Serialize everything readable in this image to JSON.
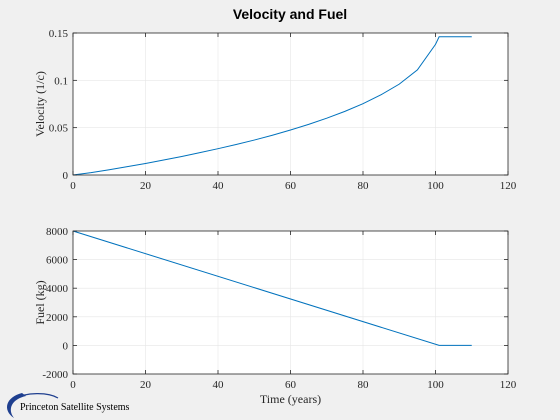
{
  "figure": {
    "title": "Velocity and Fuel",
    "logo_text": "Princeton Satellite Systems",
    "line_color": "#0072bd",
    "logo_color": "#1f3f8f"
  },
  "chart_data": [
    {
      "type": "line",
      "title": "Velocity and Fuel",
      "xlabel": "",
      "ylabel": "Velocity (1/c)",
      "xlim": [
        0,
        120
      ],
      "ylim": [
        0,
        0.15
      ],
      "xticks": [
        "0",
        "20",
        "40",
        "60",
        "80",
        "100",
        "120"
      ],
      "yticks": [
        "0",
        "0.05",
        "0.1",
        "0.15"
      ],
      "grid": true,
      "x": [
        0,
        5,
        10,
        15,
        20,
        25,
        30,
        35,
        40,
        45,
        50,
        55,
        60,
        65,
        70,
        75,
        80,
        85,
        90,
        95,
        100,
        101,
        105,
        110
      ],
      "y": [
        0,
        0.0025,
        0.0055,
        0.0088,
        0.0122,
        0.0158,
        0.0196,
        0.0236,
        0.0278,
        0.0322,
        0.0369,
        0.042,
        0.0475,
        0.0535,
        0.06,
        0.0672,
        0.0753,
        0.0848,
        0.096,
        0.111,
        0.138,
        0.146,
        0.146,
        0.146
      ]
    },
    {
      "type": "line",
      "title": "",
      "xlabel": "Time (years)",
      "ylabel": "Fuel (kg)",
      "xlim": [
        0,
        120
      ],
      "ylim": [
        -2000,
        8000
      ],
      "xticks": [
        "0",
        "20",
        "40",
        "60",
        "80",
        "100",
        "120"
      ],
      "yticks": [
        "-2000",
        "0",
        "2000",
        "4000",
        "6000",
        "8000"
      ],
      "grid": true,
      "x": [
        0,
        101,
        110
      ],
      "y": [
        8000,
        0,
        0
      ]
    }
  ]
}
